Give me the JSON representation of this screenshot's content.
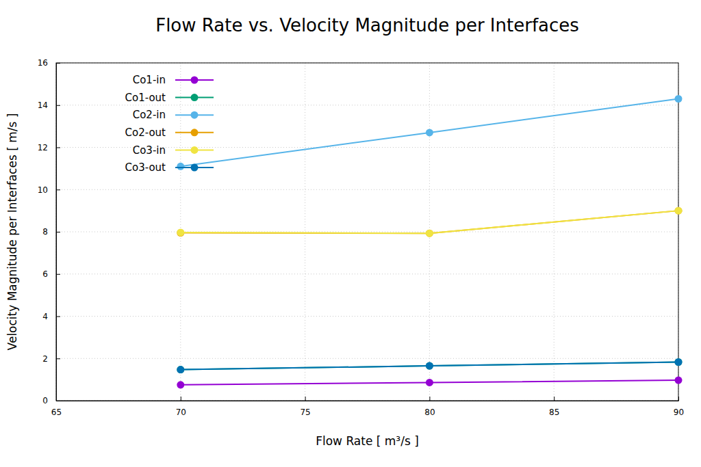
{
  "chart_data": {
    "type": "line",
    "title": "Flow Rate vs. Velocity Magnitude per Interfaces",
    "x_label": "Flow Rate [ m³/s ]",
    "y_label": "Velocity Magnitude per Interfaces [ m/s ]",
    "x": [
      70,
      80,
      90
    ],
    "series": [
      {
        "name": "Co1-in",
        "color": "#9400d3",
        "values": [
          0.75,
          0.86,
          0.97
        ]
      },
      {
        "name": "Co1-out",
        "color": "#009e73",
        "values": [
          1.47,
          1.65,
          1.83
        ]
      },
      {
        "name": "Co2-in",
        "color": "#56b4e9",
        "values": [
          11.1,
          12.7,
          14.3
        ]
      },
      {
        "name": "Co2-out",
        "color": "#e69f00",
        "values": [
          7.95,
          7.93,
          9.0
        ]
      },
      {
        "name": "Co3-in",
        "color": "#f0e442",
        "values": [
          7.97,
          7.93,
          9.0
        ]
      },
      {
        "name": "Co3-out",
        "color": "#0072b2",
        "values": [
          1.47,
          1.65,
          1.83
        ]
      }
    ],
    "xlim": [
      65,
      90
    ],
    "xticks": [
      65,
      70,
      75,
      80,
      85,
      90
    ],
    "ylim": [
      0,
      16
    ],
    "yticks": [
      0,
      2,
      4,
      6,
      8,
      10,
      12,
      14,
      16
    ],
    "grid": true,
    "legend": "upper left",
    "marker": "circle",
    "line_style": "solid"
  }
}
